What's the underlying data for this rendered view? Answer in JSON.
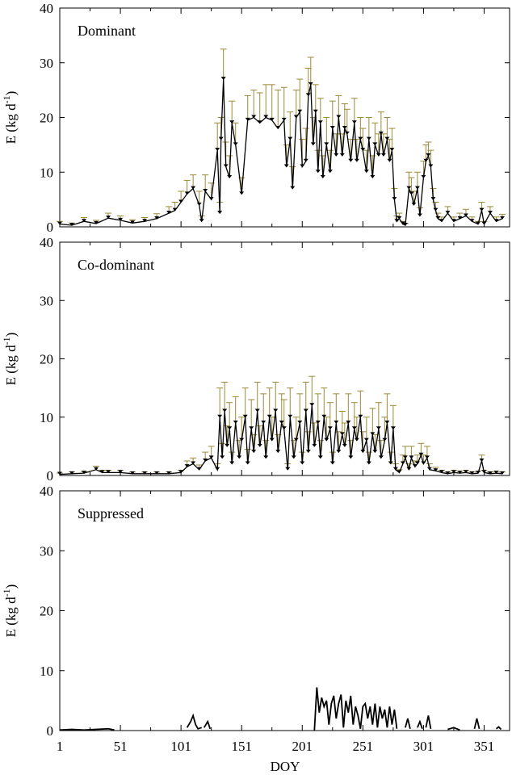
{
  "figure": {
    "xlabel": "DOY",
    "x_ticks": [
      1,
      51,
      101,
      151,
      201,
      251,
      301,
      351
    ],
    "xlim": [
      1,
      372
    ]
  },
  "chart_data": [
    {
      "type": "line",
      "panel_label": "Dominant",
      "ylabel": "E (kg d-1)",
      "ylabel_main": "E (kg d",
      "ylabel_sup": "-1",
      "ylabel_close": ")",
      "ylim": [
        0,
        40
      ],
      "y_ticks": [
        0,
        10,
        20,
        30,
        40
      ],
      "error_bars": true,
      "series": [
        {
          "x": [
            1,
            11,
            21,
            31,
            41,
            51,
            61,
            71,
            81,
            91,
            96,
            101,
            106,
            111,
            116,
            118,
            121,
            126,
            131,
            133,
            134,
            136,
            138,
            141,
            143,
            146,
            151,
            156,
            161,
            166,
            171,
            176,
            181,
            186,
            188,
            191,
            193,
            196,
            199,
            201,
            204,
            206,
            208,
            210,
            212,
            214,
            216,
            218,
            221,
            224,
            226,
            229,
            231,
            234,
            236,
            238,
            241,
            244,
            246,
            249,
            251,
            254,
            256,
            259,
            261,
            264,
            266,
            268,
            271,
            273,
            275,
            277,
            279,
            281,
            284,
            286,
            289,
            291,
            293,
            296,
            298,
            301,
            303,
            305,
            307,
            309,
            311,
            313,
            316,
            321,
            326,
            331,
            336,
            341,
            346,
            349,
            351,
            356,
            361,
            366
          ],
          "y": [
            0.5,
            0.3,
            1.0,
            0.6,
            1.6,
            1.2,
            0.7,
            1.0,
            1.5,
            2.5,
            3.0,
            4.5,
            6.0,
            7.0,
            4.0,
            1.0,
            6.5,
            5.0,
            14.0,
            2.5,
            16.0,
            27.0,
            11.0,
            9.0,
            19.0,
            15.0,
            6.0,
            19.5,
            20.0,
            19.0,
            20.0,
            19.5,
            18.0,
            19.5,
            11.0,
            16.0,
            7.0,
            20.0,
            21.0,
            11.0,
            12.0,
            24.0,
            26.0,
            15.0,
            21.0,
            10.0,
            19.0,
            9.0,
            15.0,
            10.0,
            18.0,
            13.0,
            20.0,
            13.0,
            18.0,
            17.0,
            12.0,
            19.0,
            12.0,
            16.0,
            14.0,
            10.0,
            16.0,
            9.0,
            15.0,
            13.0,
            17.0,
            13.0,
            16.0,
            12.0,
            14.0,
            5.0,
            1.0,
            1.5,
            0.5,
            0.3,
            7.0,
            6.0,
            4.0,
            7.0,
            2.0,
            9.0,
            12.0,
            13.0,
            11.0,
            5.0,
            3.0,
            1.5,
            1.0,
            2.5,
            1.0,
            1.5,
            2.0,
            1.0,
            0.5,
            3.0,
            0.5,
            2.5,
            1.0,
            1.5
          ],
          "err": [
            0.5,
            0.4,
            0.7,
            0.6,
            0.9,
            0.8,
            0.6,
            0.7,
            0.9,
            1.2,
            1.5,
            2.0,
            2.5,
            2.5,
            2.5,
            1.0,
            3.0,
            3.0,
            5.0,
            2.0,
            4.0,
            5.5,
            4.5,
            4.0,
            4.0,
            4.0,
            3.0,
            4.5,
            5.0,
            5.5,
            6.0,
            6.5,
            7.0,
            6.0,
            4.0,
            5.0,
            4.0,
            5.0,
            6.0,
            5.0,
            6.0,
            5.0,
            5.0,
            5.0,
            5.0,
            4.0,
            4.5,
            4.0,
            5.0,
            4.0,
            5.0,
            4.0,
            4.0,
            4.0,
            4.5,
            4.5,
            4.0,
            4.5,
            4.0,
            4.0,
            4.0,
            4.0,
            4.0,
            4.0,
            4.0,
            4.0,
            4.0,
            4.0,
            4.0,
            4.0,
            4.0,
            2.0,
            1.0,
            1.0,
            0.5,
            0.3,
            3.0,
            3.0,
            2.5,
            3.0,
            1.5,
            3.0,
            3.0,
            2.5,
            3.0,
            2.0,
            1.5,
            1.0,
            0.8,
            1.2,
            0.8,
            1.0,
            1.2,
            0.8,
            0.5,
            1.5,
            0.5,
            1.2,
            0.8,
            0.8
          ]
        }
      ]
    },
    {
      "type": "line",
      "panel_label": "Co-dominant",
      "ylabel": "E (kg d-1)",
      "ylabel_main": "E (kg d",
      "ylabel_sup": "-1",
      "ylabel_close": ")",
      "ylim": [
        0,
        40
      ],
      "y_ticks": [
        0,
        10,
        20,
        30,
        40
      ],
      "error_bars": true,
      "series": [
        {
          "x": [
            1,
            11,
            21,
            31,
            36,
            41,
            51,
            61,
            71,
            81,
            91,
            101,
            106,
            111,
            116,
            121,
            126,
            131,
            133,
            135,
            137,
            139,
            141,
            143,
            146,
            149,
            151,
            154,
            156,
            159,
            161,
            164,
            166,
            169,
            171,
            174,
            176,
            179,
            181,
            184,
            186,
            189,
            191,
            194,
            196,
            199,
            201,
            204,
            206,
            209,
            211,
            214,
            216,
            219,
            221,
            224,
            226,
            229,
            231,
            234,
            236,
            239,
            241,
            244,
            246,
            249,
            251,
            254,
            256,
            259,
            261,
            264,
            266,
            269,
            271,
            274,
            276,
            278,
            281,
            284,
            286,
            289,
            291,
            294,
            296,
            299,
            301,
            304,
            306,
            311,
            316,
            321,
            326,
            331,
            336,
            341,
            346,
            349,
            351,
            356,
            361,
            366
          ],
          "y": [
            0.2,
            0.3,
            0.4,
            1.0,
            0.5,
            0.5,
            0.5,
            0.3,
            0.3,
            0.3,
            0.3,
            0.5,
            1.5,
            2.0,
            1.0,
            2.5,
            3.0,
            1.0,
            10.0,
            3.0,
            11.0,
            5.0,
            8.0,
            2.0,
            9.0,
            3.0,
            6.0,
            10.0,
            2.0,
            8.0,
            4.0,
            11.0,
            5.0,
            9.0,
            3.0,
            10.0,
            6.0,
            11.0,
            4.0,
            9.0,
            8.0,
            1.0,
            10.0,
            3.0,
            6.0,
            9.0,
            2.0,
            11.0,
            4.0,
            12.0,
            5.0,
            9.0,
            3.0,
            10.0,
            6.0,
            8.0,
            2.0,
            9.0,
            4.0,
            7.0,
            5.0,
            9.0,
            3.0,
            8.0,
            6.0,
            10.0,
            4.0,
            6.0,
            2.0,
            7.0,
            4.0,
            8.0,
            3.0,
            6.0,
            9.0,
            2.0,
            8.0,
            1.0,
            0.5,
            2.0,
            3.0,
            1.0,
            3.0,
            1.5,
            2.0,
            3.5,
            2.0,
            3.0,
            1.0,
            0.8,
            0.5,
            0.3,
            0.5,
            0.4,
            0.5,
            0.3,
            0.4,
            2.5,
            0.5,
            0.3,
            0.4,
            0.3
          ],
          "err": [
            0.2,
            0.3,
            0.3,
            0.6,
            0.4,
            0.4,
            0.4,
            0.3,
            0.3,
            0.3,
            0.3,
            0.4,
            1.0,
            1.0,
            0.8,
            1.5,
            2.0,
            1.0,
            5.0,
            2.5,
            5.0,
            3.5,
            4.5,
            2.0,
            4.5,
            3.0,
            4.0,
            5.0,
            2.5,
            5.0,
            3.0,
            5.0,
            3.5,
            5.0,
            3.0,
            5.0,
            4.0,
            5.0,
            3.0,
            5.0,
            5.0,
            1.0,
            5.0,
            3.0,
            4.0,
            5.0,
            2.0,
            5.0,
            3.5,
            5.0,
            4.0,
            5.0,
            3.0,
            5.0,
            4.0,
            4.5,
            2.0,
            5.0,
            3.5,
            4.0,
            4.0,
            5.0,
            3.0,
            4.5,
            4.0,
            4.5,
            3.5,
            4.0,
            2.0,
            4.5,
            3.0,
            4.5,
            3.0,
            4.0,
            5.0,
            2.0,
            4.0,
            1.0,
            0.5,
            1.5,
            2.0,
            1.0,
            2.0,
            1.0,
            1.5,
            2.0,
            1.5,
            2.0,
            1.0,
            0.6,
            0.4,
            0.3,
            0.4,
            0.3,
            0.4,
            0.3,
            0.3,
            1.0,
            0.4,
            0.3,
            0.3,
            0.3
          ]
        }
      ]
    },
    {
      "type": "line",
      "panel_label": "Suppressed",
      "ylabel": "E (kg d-1)",
      "ylabel_main": "E (kg d",
      "ylabel_sup": "-1",
      "ylabel_close": ")",
      "ylim": [
        0,
        40
      ],
      "y_ticks": [
        0,
        10,
        20,
        30,
        40
      ],
      "error_bars": false,
      "series": [
        {
          "segments": [
            {
              "x": [
                1,
                11,
                21,
                31,
                41,
                46
              ],
              "y": [
                0.1,
                0.2,
                0.1,
                0.2,
                0.3,
                0.1
              ]
            },
            {
              "x": [
                106,
                109,
                111,
                113,
                115,
                118
              ],
              "y": [
                0.5,
                1.5,
                2.5,
                1.0,
                0.3,
                0.5
              ]
            },
            {
              "x": [
                120,
                123,
                125
              ],
              "y": [
                0.5,
                1.5,
                0.3
              ]
            },
            {
              "x": [
                211,
                213,
                215,
                217,
                219,
                221,
                223,
                225,
                227,
                229,
                231,
                233,
                235,
                237,
                239,
                241,
                243,
                245,
                247,
                249,
                251,
                253,
                255,
                257,
                259,
                261,
                263,
                265,
                267,
                269,
                271,
                273,
                275,
                277,
                279
              ],
              "y": [
                0.0,
                7.2,
                3.0,
                5.5,
                4.0,
                5.0,
                1.0,
                4.5,
                5.8,
                2.0,
                4.5,
                6.0,
                0.5,
                5.0,
                3.0,
                5.8,
                1.0,
                4.0,
                2.5,
                0.3,
                4.0,
                4.5,
                2.0,
                4.0,
                1.0,
                4.5,
                0.5,
                4.0,
                2.0,
                3.5,
                0.5,
                4.0,
                1.0,
                3.5,
                0.3
              ]
            },
            {
              "x": [
                286,
                288,
                290
              ],
              "y": [
                0.5,
                2.0,
                0.3
              ]
            },
            {
              "x": [
                296,
                298,
                300
              ],
              "y": [
                0.5,
                1.5,
                0.3
              ]
            },
            {
              "x": [
                303,
                305,
                307
              ],
              "y": [
                0.5,
                2.5,
                0.3
              ]
            },
            {
              "x": [
                321,
                326,
                331
              ],
              "y": [
                0.2,
                0.5,
                0.1
              ]
            },
            {
              "x": [
                343,
                345,
                347
              ],
              "y": [
                0.3,
                2.0,
                0.3
              ]
            },
            {
              "x": [
                361,
                363,
                365
              ],
              "y": [
                0.3,
                0.6,
                0.2
              ]
            }
          ]
        }
      ]
    }
  ]
}
